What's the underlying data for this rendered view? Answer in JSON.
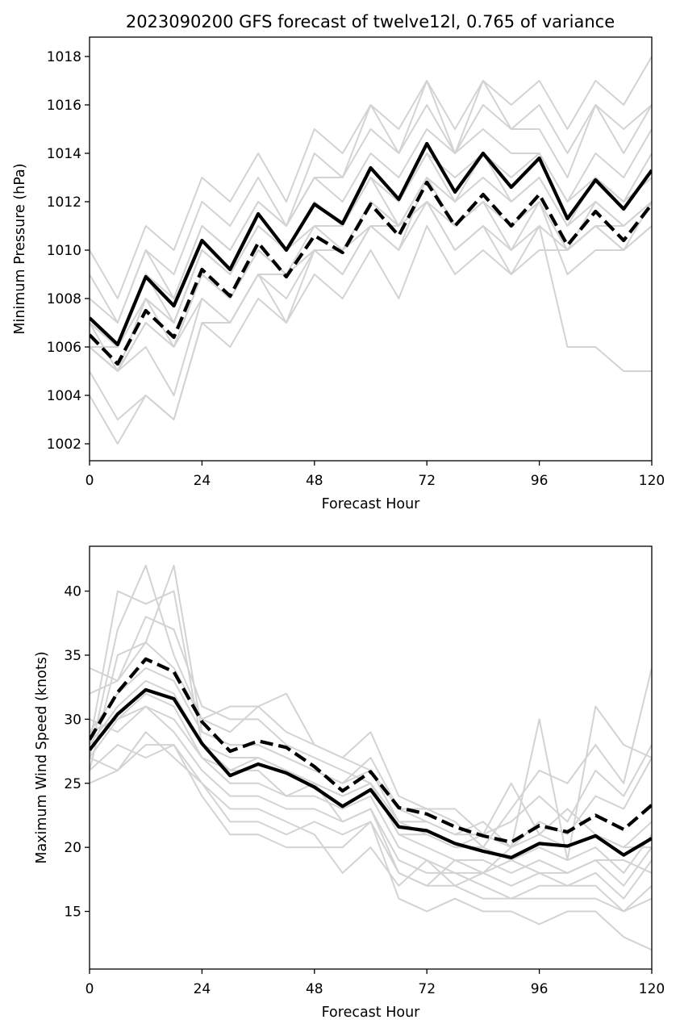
{
  "chart_data": [
    {
      "type": "line",
      "title": "2023090200 GFS forecast of twelve12l, 0.765 of variance",
      "xlabel": "Forecast Hour",
      "ylabel": "Minimum Pressure (hPa)",
      "xlim": [
        0,
        120
      ],
      "ylim": [
        1001.3,
        1018.8
      ],
      "xticks": [
        0,
        24,
        48,
        72,
        96,
        120
      ],
      "yticks": [
        1002,
        1004,
        1006,
        1008,
        1010,
        1012,
        1014,
        1016,
        1018
      ],
      "x": [
        0,
        6,
        12,
        18,
        24,
        30,
        36,
        42,
        48,
        54,
        60,
        66,
        72,
        78,
        84,
        90,
        96,
        102,
        108,
        114,
        120
      ],
      "colors": {
        "ensemble": "#d3d3d3",
        "highlight": "#000000"
      },
      "series": [
        {
          "role": "ensemble",
          "values": [
            1010,
            1008,
            1011,
            1010,
            1013,
            1012,
            1014,
            1012,
            1015,
            1014,
            1016,
            1015,
            1017,
            1015,
            1017,
            1016,
            1017,
            1015,
            1017,
            1016,
            1018
          ]
        },
        {
          "role": "ensemble",
          "values": [
            1009,
            1007,
            1010,
            1009,
            1012,
            1011,
            1013,
            1011,
            1014,
            1013,
            1016,
            1014,
            1017,
            1014,
            1017,
            1015,
            1016,
            1014,
            1016,
            1015,
            1016
          ]
        },
        {
          "role": "ensemble",
          "values": [
            1008,
            1007,
            1010,
            1008,
            1011,
            1010,
            1012,
            1011,
            1013,
            1013,
            1015,
            1014,
            1016,
            1014,
            1016,
            1015,
            1015,
            1013,
            1016,
            1014,
            1016
          ]
        },
        {
          "role": "ensemble",
          "values": [
            1007,
            1006,
            1009,
            1008,
            1011,
            1010,
            1012,
            1011,
            1013,
            1012,
            1014,
            1013,
            1015,
            1014,
            1015,
            1014,
            1014,
            1012,
            1014,
            1013,
            1015
          ]
        },
        {
          "role": "ensemble",
          "values": [
            1007,
            1006,
            1009,
            1007,
            1010,
            1009,
            1011,
            1010,
            1012,
            1011,
            1013,
            1012,
            1014,
            1013,
            1014,
            1013,
            1014,
            1012,
            1013,
            1012,
            1014
          ]
        },
        {
          "role": "ensemble",
          "values": [
            1007,
            1005,
            1008,
            1007,
            1010,
            1009,
            1011,
            1010,
            1012,
            1011,
            1013,
            1012,
            1014,
            1012,
            1014,
            1012,
            1013,
            1011,
            1013,
            1012,
            1013
          ]
        },
        {
          "role": "ensemble",
          "values": [
            1006,
            1006,
            1008,
            1007,
            1010,
            1009,
            1011,
            1010,
            1011,
            1011,
            1013,
            1011,
            1013,
            1012,
            1013,
            1012,
            1013,
            1011,
            1012,
            1011,
            1012
          ]
        },
        {
          "role": "ensemble",
          "values": [
            1006,
            1005,
            1008,
            1006,
            1009,
            1008,
            1010,
            1009,
            1011,
            1010,
            1012,
            1011,
            1013,
            1011,
            1012,
            1011,
            1012,
            1010,
            1012,
            1011,
            1012
          ]
        },
        {
          "role": "ensemble",
          "values": [
            1006,
            1005,
            1007,
            1006,
            1009,
            1008,
            1010,
            1009,
            1010,
            1010,
            1012,
            1011,
            1012,
            1011,
            1012,
            1011,
            1012,
            1010,
            1011,
            1010,
            1012
          ]
        },
        {
          "role": "ensemble",
          "values": [
            1006,
            1005,
            1007,
            1006,
            1008,
            1007,
            1009,
            1008,
            1010,
            1009,
            1011,
            1010,
            1012,
            1010,
            1011,
            1010,
            1011,
            1010,
            1011,
            1010,
            1011
          ]
        },
        {
          "role": "ensemble",
          "values": [
            1005,
            1003,
            1004,
            1003,
            1007,
            1007,
            1009,
            1007,
            1010,
            1009,
            1011,
            1010,
            1013,
            1011,
            1012,
            1010,
            1012,
            1009,
            1010,
            1010,
            1011
          ]
        },
        {
          "role": "ensemble",
          "values": [
            1004,
            1002,
            1004,
            1003,
            1007,
            1006,
            1008,
            1007,
            1009,
            1008,
            1010,
            1008,
            1011,
            1009,
            1010,
            1009,
            1011,
            1006,
            1006,
            1005,
            1005
          ]
        },
        {
          "role": "ensemble",
          "values": [
            1006,
            1005,
            1006,
            1004,
            1008,
            1007,
            1009,
            1009,
            1010,
            1010,
            1011,
            1011,
            1012,
            1010,
            1011,
            1009,
            1010,
            1010,
            1011,
            1011,
            1012
          ]
        },
        {
          "role": "highlight",
          "style": "solid",
          "values": [
            1007.2,
            1006.1,
            1008.9,
            1007.7,
            1010.4,
            1009.2,
            1011.5,
            1010.0,
            1011.9,
            1011.1,
            1013.4,
            1012.1,
            1014.4,
            1012.4,
            1014.0,
            1012.6,
            1013.8,
            1011.3,
            1012.9,
            1011.7,
            1013.3
          ]
        },
        {
          "role": "highlight",
          "style": "dashed",
          "values": [
            1006.5,
            1005.3,
            1007.5,
            1006.4,
            1009.2,
            1008.1,
            1010.3,
            1008.9,
            1010.6,
            1009.9,
            1011.9,
            1010.6,
            1012.8,
            1011.0,
            1012.3,
            1011.0,
            1012.3,
            1010.2,
            1011.6,
            1010.4,
            1011.9
          ]
        }
      ]
    },
    {
      "type": "line",
      "xlabel": "Forecast Hour",
      "ylabel": "Maximum Wind Speed (knots)",
      "xlim": [
        0,
        120
      ],
      "ylim": [
        10.5,
        43.5
      ],
      "xticks": [
        0,
        24,
        48,
        72,
        96,
        120
      ],
      "yticks": [
        15,
        20,
        25,
        30,
        35,
        40
      ],
      "x": [
        0,
        6,
        12,
        18,
        24,
        30,
        36,
        42,
        48,
        54,
        60,
        66,
        72,
        78,
        84,
        90,
        96,
        102,
        108,
        114,
        120
      ],
      "colors": {
        "ensemble": "#d3d3d3",
        "highlight": "#000000"
      },
      "series": [
        {
          "role": "ensemble",
          "values": [
            28,
            40,
            39,
            40,
            28,
            26,
            26,
            24,
            25,
            22,
            23,
            18,
            17,
            19,
            18,
            20,
            30,
            19,
            31,
            28,
            27
          ]
        },
        {
          "role": "ensemble",
          "values": [
            27,
            37,
            42,
            35,
            30,
            29,
            31,
            32,
            28,
            27,
            29,
            24,
            23,
            22,
            20,
            23,
            26,
            25,
            28,
            25,
            34
          ]
        },
        {
          "role": "ensemble",
          "values": [
            26,
            35,
            36,
            42,
            29,
            28,
            28,
            27,
            26,
            25,
            27,
            23,
            22,
            21,
            21,
            22,
            24,
            22,
            26,
            24,
            28
          ]
        },
        {
          "role": "ensemble",
          "values": [
            34,
            33,
            38,
            37,
            31,
            30,
            30,
            28,
            27,
            26,
            25,
            22,
            22,
            21,
            22,
            20,
            22,
            21,
            24,
            23,
            27
          ]
        },
        {
          "role": "ensemble",
          "values": [
            32,
            33,
            36,
            34,
            30,
            31,
            31,
            29,
            28,
            27,
            26,
            23,
            23,
            23,
            21,
            25,
            21,
            23,
            21,
            20,
            22
          ]
        },
        {
          "role": "ensemble",
          "values": [
            25,
            26,
            28,
            28,
            24,
            21,
            21,
            20,
            20,
            20,
            22,
            16,
            15,
            16,
            15,
            15,
            14,
            15,
            15,
            13,
            12
          ]
        },
        {
          "role": "ensemble",
          "values": [
            27,
            30,
            31,
            30,
            27,
            25,
            25,
            24,
            24,
            23,
            24,
            20,
            19,
            18,
            18,
            17,
            18,
            17,
            18,
            16,
            19
          ]
        },
        {
          "role": "ensemble",
          "values": [
            28,
            31,
            33,
            32,
            28,
            27,
            27,
            26,
            25,
            24,
            25,
            21,
            20,
            19,
            19,
            18,
            19,
            18,
            19,
            17,
            20
          ]
        },
        {
          "role": "ensemble",
          "values": [
            29,
            32,
            34,
            33,
            29,
            28,
            28,
            27,
            26,
            25,
            26,
            22,
            21,
            20,
            20,
            19,
            20,
            19,
            20,
            18,
            21
          ]
        },
        {
          "role": "ensemble",
          "values": [
            30,
            29,
            31,
            29,
            26,
            24,
            24,
            23,
            23,
            22,
            23,
            19,
            18,
            18,
            17,
            16,
            17,
            17,
            17,
            15,
            17
          ]
        },
        {
          "role": "ensemble",
          "values": [
            26,
            28,
            27,
            28,
            25,
            22,
            22,
            21,
            22,
            21,
            22,
            18,
            17,
            17,
            16,
            16,
            16,
            16,
            16,
            15,
            16
          ]
        },
        {
          "role": "ensemble",
          "values": [
            27,
            26,
            29,
            27,
            25,
            23,
            23,
            22,
            21,
            18,
            20,
            17,
            19,
            17,
            18,
            19,
            18,
            18,
            19,
            19,
            18
          ]
        },
        {
          "role": "ensemble",
          "values": [
            29,
            30,
            32,
            31,
            27,
            26,
            27,
            26,
            25,
            24,
            25,
            21,
            21,
            20,
            21,
            20,
            21,
            20,
            21,
            20,
            20
          ]
        },
        {
          "role": "highlight",
          "style": "solid",
          "values": [
            27.6,
            30.4,
            32.3,
            31.6,
            28.1,
            25.6,
            26.5,
            25.8,
            24.7,
            23.2,
            24.5,
            21.6,
            21.3,
            20.3,
            19.7,
            19.2,
            20.3,
            20.1,
            20.9,
            19.4,
            20.7
          ]
        },
        {
          "role": "highlight",
          "style": "dashed",
          "values": [
            28.4,
            32.1,
            34.7,
            33.7,
            29.8,
            27.5,
            28.3,
            27.8,
            26.3,
            24.4,
            25.9,
            23.1,
            22.6,
            21.6,
            20.9,
            20.4,
            21.7,
            21.2,
            22.5,
            21.4,
            23.3
          ]
        }
      ]
    }
  ]
}
